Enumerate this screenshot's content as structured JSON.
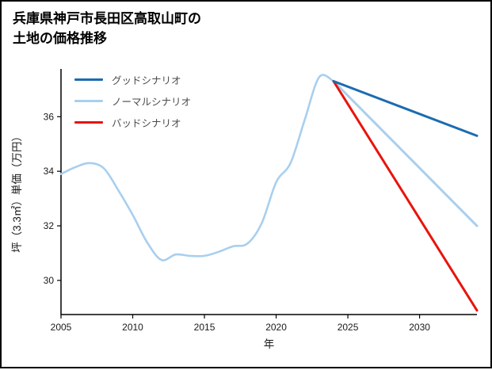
{
  "title": {
    "line1": "兵庫県神戸市長田区高取山町の",
    "line2": "土地の価格推移"
  },
  "chart_data": {
    "type": "line",
    "title": "兵庫県神戸市長田区高取山町の土地の価格推移",
    "xlabel": "年",
    "ylabel": "坪（3.3㎡）単価（万円）",
    "xlim": [
      2005,
      2034
    ],
    "ylim": [
      28.75,
      37.75
    ],
    "xticks": [
      2005,
      2010,
      2015,
      2020,
      2025,
      2030
    ],
    "yticks": [
      30,
      32,
      34,
      36
    ],
    "grid": false,
    "legend_position": "upper-left",
    "axis_color": "#000000",
    "tick_label_color": "#1a1a1a",
    "history": {
      "color": "#a9cfee",
      "x": [
        2005,
        2006,
        2007,
        2008,
        2009,
        2010,
        2011,
        2012,
        2013,
        2014,
        2015,
        2016,
        2017,
        2018,
        2019,
        2020,
        2021,
        2022,
        2023,
        2024
      ],
      "values": [
        33.9,
        34.15,
        34.3,
        34.1,
        33.3,
        32.4,
        31.4,
        30.75,
        30.95,
        30.9,
        30.9,
        31.05,
        31.25,
        31.35,
        32.1,
        33.6,
        34.3,
        35.9,
        37.45,
        37.3
      ]
    },
    "series": [
      {
        "name": "グッドシナリオ",
        "color": "#1b6cb0",
        "x": [
          2024,
          2034
        ],
        "values": [
          37.3,
          35.3
        ]
      },
      {
        "name": "ノーマルシナリオ",
        "color": "#a9cfee",
        "x": [
          2024,
          2034
        ],
        "values": [
          37.3,
          32.0
        ]
      },
      {
        "name": "バッドシナリオ",
        "color": "#e8140c",
        "x": [
          2024,
          2034
        ],
        "values": [
          37.3,
          28.9
        ]
      }
    ]
  }
}
